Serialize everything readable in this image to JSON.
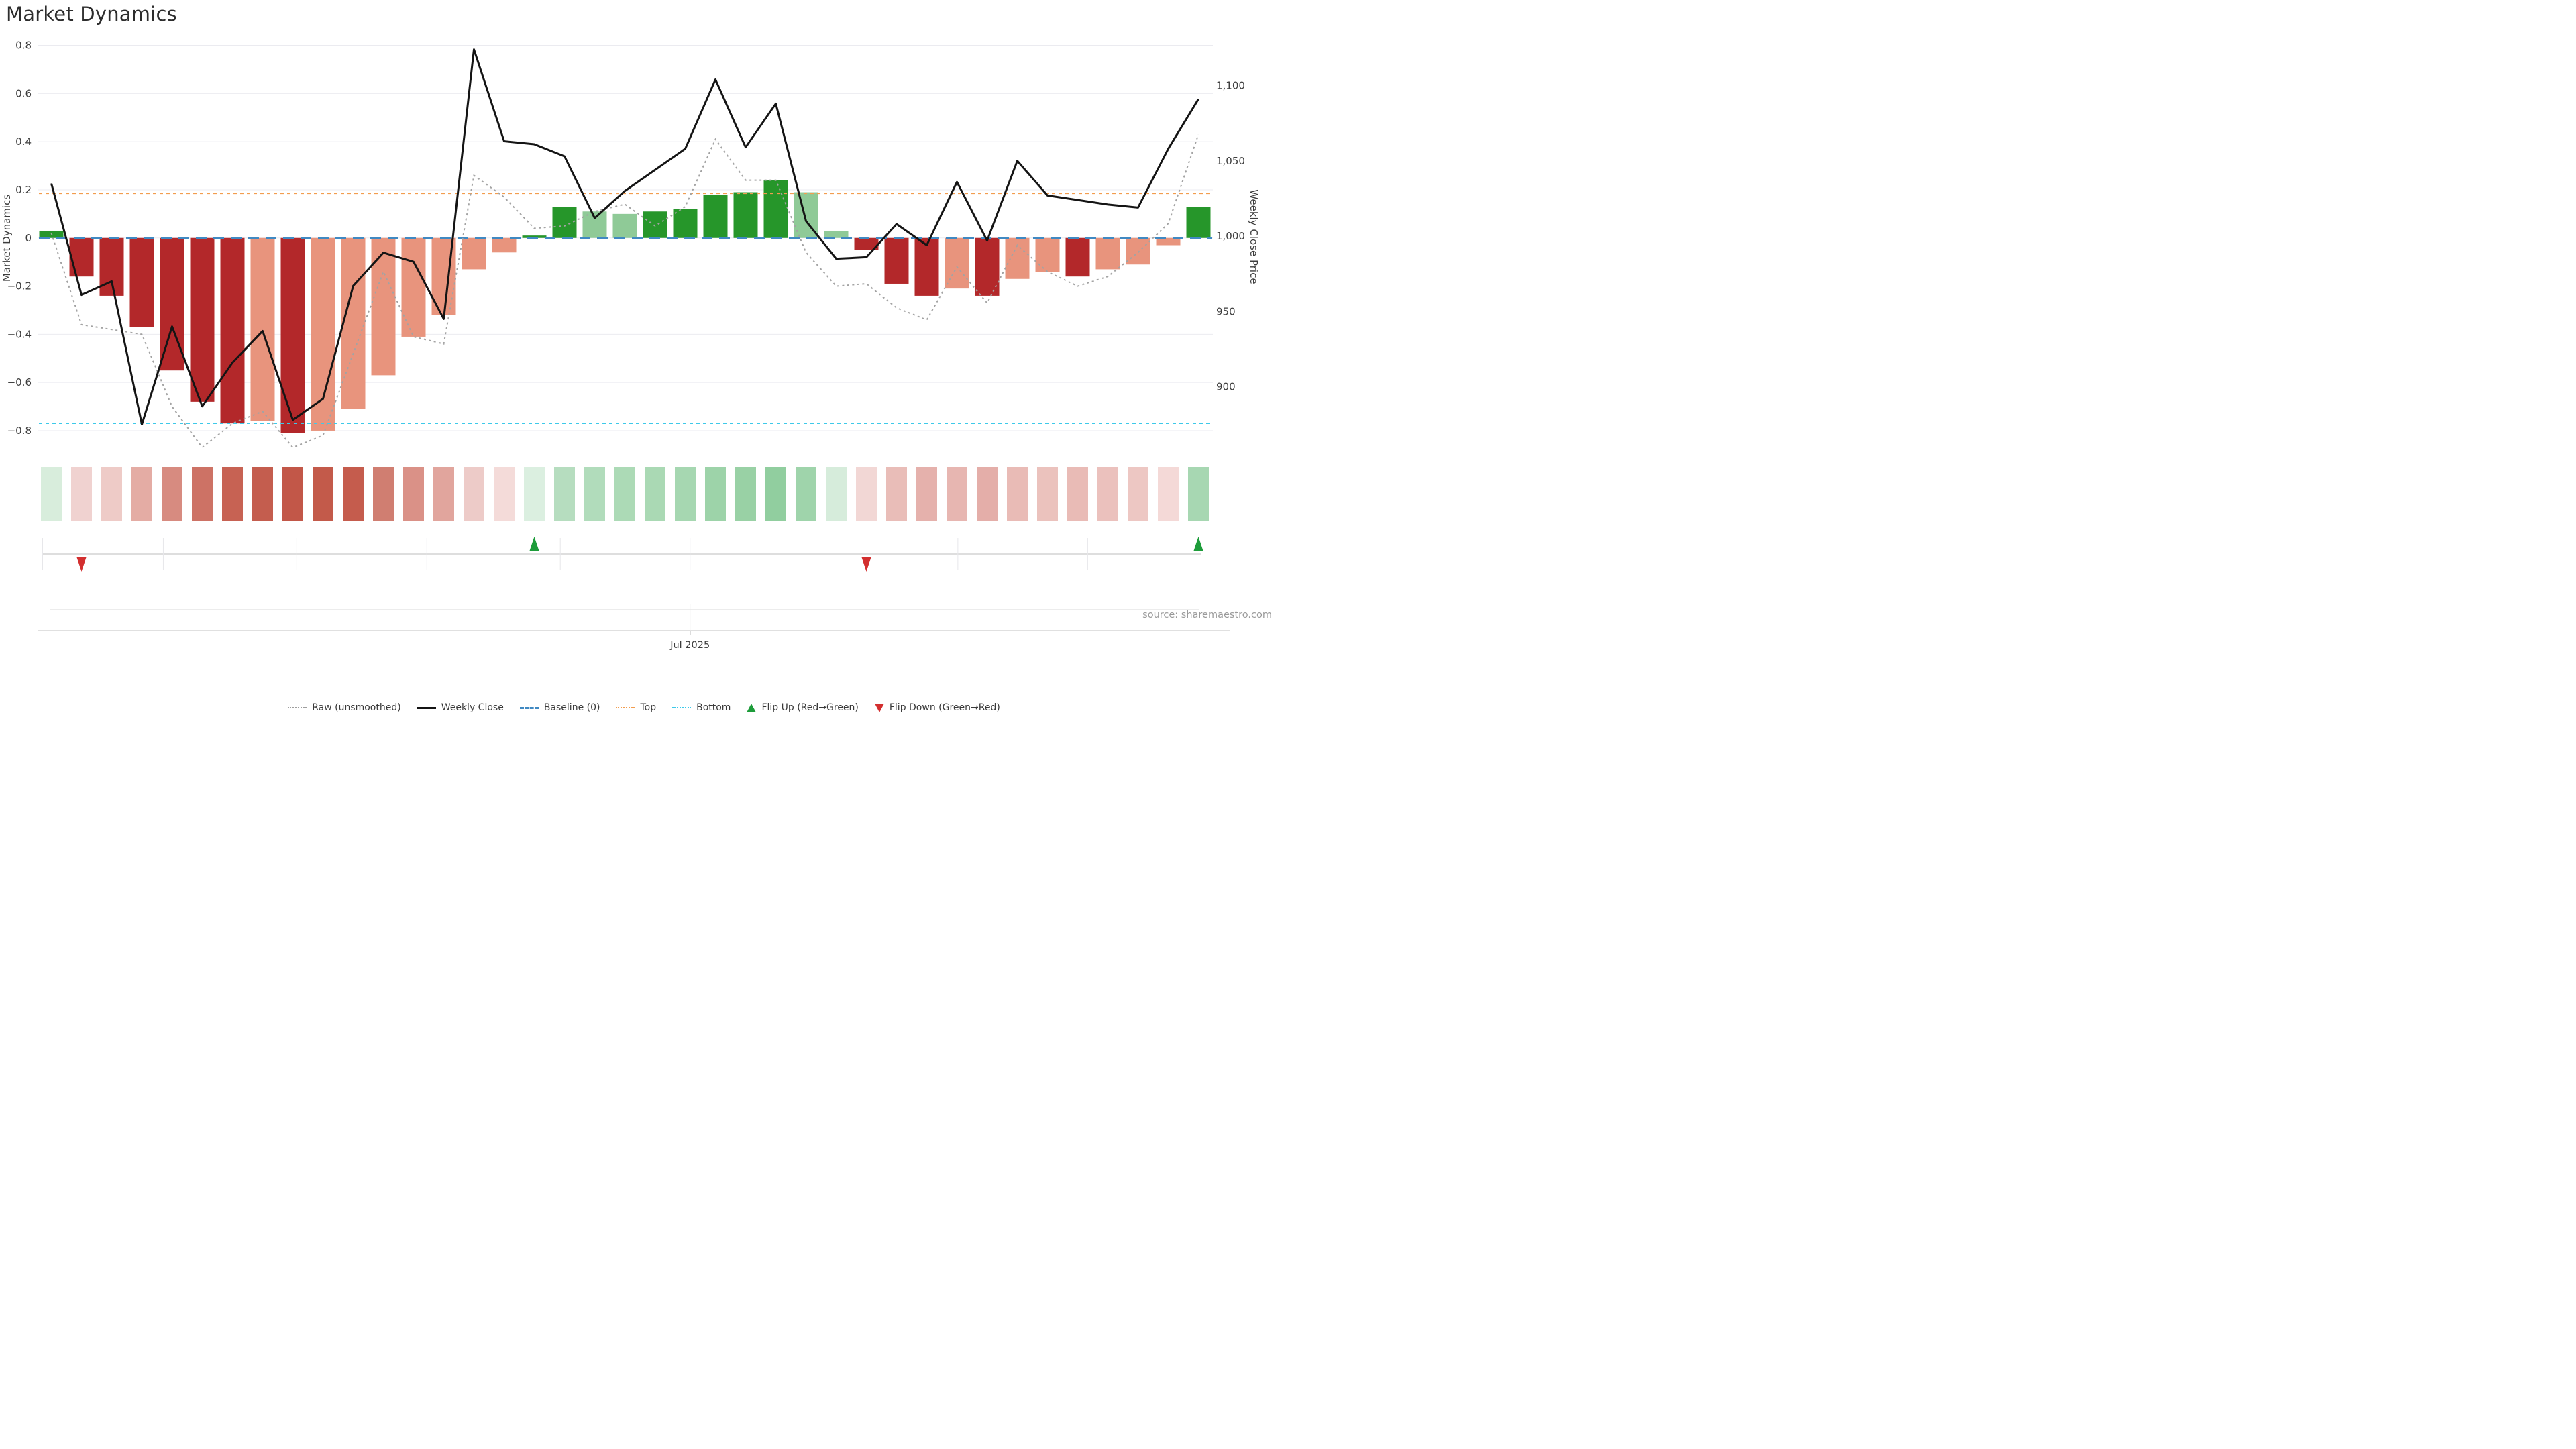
{
  "title": "Market Dynamics",
  "source_note": "source: sharemaestro.com",
  "axes": {
    "left": {
      "label": "Market Dynamics",
      "ticks": [
        "0.8",
        "0.6",
        "0.4",
        "0.2",
        "0",
        "−0.2",
        "−0.4",
        "−0.6",
        "−0.8"
      ],
      "tick_values": [
        0.8,
        0.6,
        0.4,
        0.2,
        0,
        -0.2,
        -0.4,
        -0.6,
        -0.8
      ]
    },
    "right": {
      "label": "Weekly Close Price",
      "ticks": [
        "1,100",
        "1,050",
        "1,000",
        "950",
        "900"
      ],
      "tick_values": [
        1100,
        1050,
        1000,
        950,
        900
      ]
    },
    "x": {
      "tick_label": "Jul 2025",
      "tick_week": 22.16,
      "month_gridline_weeks": [
        4.71,
        9.13,
        13.44,
        17.86,
        22.16,
        26.6,
        31.03,
        35.33
      ]
    }
  },
  "legend": [
    {
      "key": "raw",
      "label": "Raw (unsmoothed)",
      "glyph": "g-dotted",
      "color": "#9e9e9e"
    },
    {
      "key": "weekly-close",
      "label": "Weekly Close",
      "glyph": "g-solid",
      "color": "#141414"
    },
    {
      "key": "baseline",
      "label": "Baseline (0)",
      "glyph": "g-dashed",
      "color": "#4089c2"
    },
    {
      "key": "top",
      "label": "Top",
      "glyph": "g-dotted",
      "color": "#f29d4f"
    },
    {
      "key": "bottom",
      "label": "Bottom",
      "glyph": "g-dotted",
      "color": "#3ec9e9"
    },
    {
      "key": "flip-up",
      "label": "Flip Up (Red→Green)",
      "glyph": "g-tri-up",
      "color": "#1d9c3a"
    },
    {
      "key": "flip-down",
      "label": "Flip Down (Green→Red)",
      "glyph": "g-tri-down",
      "color": "#d32f2f"
    }
  ],
  "chart_data": {
    "type": "combo",
    "weeks": 39,
    "week_index": [
      1,
      2,
      3,
      4,
      5,
      6,
      7,
      8,
      9,
      10,
      11,
      12,
      13,
      14,
      15,
      16,
      17,
      18,
      19,
      20,
      21,
      22,
      23,
      24,
      25,
      26,
      27,
      28,
      29,
      30,
      31,
      32,
      33,
      34,
      35,
      36,
      37,
      38,
      39
    ],
    "bar_series": {
      "name": "Market Dynamics (smoothed)",
      "axis": "left",
      "values": [
        0.03,
        -0.16,
        -0.24,
        -0.37,
        -0.55,
        -0.68,
        -0.77,
        -0.76,
        -0.81,
        -0.8,
        -0.71,
        -0.57,
        -0.41,
        -0.32,
        -0.13,
        -0.06,
        0.01,
        0.13,
        0.11,
        0.1,
        0.11,
        0.12,
        0.18,
        0.19,
        0.24,
        0.19,
        0.03,
        -0.05,
        -0.19,
        -0.24,
        -0.21,
        -0.24,
        -0.17,
        -0.14,
        -0.16,
        -0.13,
        -0.11,
        -0.03,
        0.13
      ],
      "shade": [
        "dark",
        "dark",
        "dark",
        "dark",
        "dark",
        "dark",
        "dark",
        "light",
        "dark",
        "light",
        "light",
        "light",
        "light",
        "light",
        "light",
        "light",
        "dark",
        "dark",
        "light",
        "light",
        "dark",
        "dark",
        "dark",
        "dark",
        "dark",
        "light",
        "light",
        "dark",
        "dark",
        "dark",
        "light",
        "dark",
        "light",
        "light",
        "dark",
        "light",
        "light",
        "light",
        "dark"
      ]
    },
    "line_series": [
      {
        "name": "Raw (unsmoothed)",
        "axis": "left",
        "style": "dotted",
        "color": "#a3a3a3",
        "values": [
          0.02,
          -0.36,
          -0.38,
          -0.4,
          -0.7,
          -0.87,
          -0.77,
          -0.72,
          -0.87,
          -0.82,
          -0.48,
          -0.14,
          -0.41,
          -0.44,
          0.26,
          0.17,
          0.04,
          0.05,
          0.11,
          0.14,
          0.05,
          0.13,
          0.41,
          0.24,
          0.24,
          -0.06,
          -0.2,
          -0.19,
          -0.29,
          -0.34,
          -0.12,
          -0.27,
          -0.03,
          -0.14,
          -0.2,
          -0.16,
          -0.06,
          0.06,
          0.43
        ]
      },
      {
        "name": "Weekly Close",
        "axis": "right",
        "style": "solid",
        "color": "#141414",
        "values": [
          1035,
          961,
          970,
          875,
          940,
          887,
          916,
          937,
          878,
          892,
          967,
          989,
          983,
          945,
          1124,
          1063,
          1061,
          1053,
          1012,
          1030,
          1044,
          1058,
          1104,
          1059,
          1088,
          1010,
          985,
          986,
          1008,
          994,
          1036,
          997,
          1050,
          1027,
          1024,
          1021,
          1019,
          1058,
          1091
        ]
      }
    ],
    "reference_lines": {
      "baseline": 0,
      "top": 0.185,
      "bottom": -0.77
    },
    "flip_up_weeks": [
      17,
      39
    ],
    "flip_down_weeks": [
      2,
      28
    ],
    "heatmap_colors": [
      "#d8eddc",
      "#f0d2d0",
      "#eecbc7",
      "#e4aca4",
      "#d78b80",
      "#cd7265",
      "#c76253",
      "#c45d4e",
      "#c25748",
      "#c35a4a",
      "#c55c4d",
      "#d07e71",
      "#da9187",
      "#e1a59d",
      "#edcbc8",
      "#f4dbd9",
      "#dbefe0",
      "#b6ddbf",
      "#b1dcbb",
      "#acdab6",
      "#aad9b4",
      "#a6d7b1",
      "#9dd3a9",
      "#99d1a5",
      "#91ce9f",
      "#9fd4ab",
      "#d6ecdb",
      "#f2d7d5",
      "#e9bdb8",
      "#e5b1ac",
      "#e7b6b1",
      "#e4aea9",
      "#e9bbb6",
      "#ebc2bd",
      "#e9bbb6",
      "#ebc1bd",
      "#edc7c3",
      "#f4d9d7",
      "#a7d7b2"
    ],
    "axis_ranges": {
      "left": [
        -0.9,
        0.9
      ],
      "right": [
        880,
        1130
      ]
    },
    "colors": {
      "bar_dark_red": "#b3282a",
      "bar_light_red": "#e8947d",
      "bar_dark_green": "#26962a",
      "bar_light_green": "#8fca97",
      "baseline": "#4089c2",
      "top": "#f29d4f",
      "bottom": "#3ec9e9",
      "flip_up": "#1d9c3a",
      "flip_down": "#d32f2f",
      "raw": "#a3a3a3",
      "close": "#141414",
      "gridline": "#ebebf0",
      "axis_line": "#d6d6d6",
      "tick_text": "#3d3d3d",
      "source_text": "#9a9a9a"
    }
  }
}
